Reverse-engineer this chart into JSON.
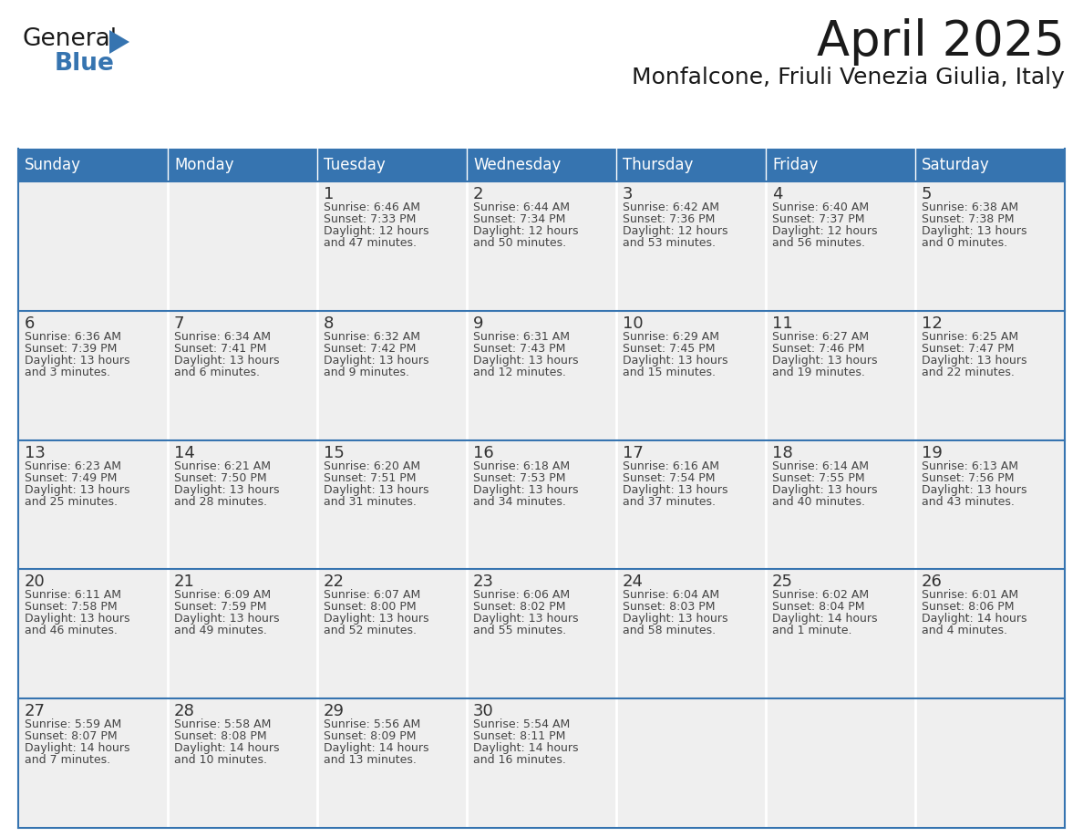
{
  "title": "April 2025",
  "subtitle": "Monfalcone, Friuli Venezia Giulia, Italy",
  "header_bg": "#3674B0",
  "header_text_color": "#FFFFFF",
  "cell_bg": "#EFEFEF",
  "cell_bg_empty": "#EFEFEF",
  "day_number_color": "#333333",
  "cell_text_color": "#444444",
  "border_color": "#3674B0",
  "row_divider_color": "#3674B0",
  "col_divider_color": "#FFFFFF",
  "days_of_week": [
    "Sunday",
    "Monday",
    "Tuesday",
    "Wednesday",
    "Thursday",
    "Friday",
    "Saturday"
  ],
  "weeks": [
    [
      {
        "day": "",
        "info": ""
      },
      {
        "day": "",
        "info": ""
      },
      {
        "day": "1",
        "info": "Sunrise: 6:46 AM\nSunset: 7:33 PM\nDaylight: 12 hours\nand 47 minutes."
      },
      {
        "day": "2",
        "info": "Sunrise: 6:44 AM\nSunset: 7:34 PM\nDaylight: 12 hours\nand 50 minutes."
      },
      {
        "day": "3",
        "info": "Sunrise: 6:42 AM\nSunset: 7:36 PM\nDaylight: 12 hours\nand 53 minutes."
      },
      {
        "day": "4",
        "info": "Sunrise: 6:40 AM\nSunset: 7:37 PM\nDaylight: 12 hours\nand 56 minutes."
      },
      {
        "day": "5",
        "info": "Sunrise: 6:38 AM\nSunset: 7:38 PM\nDaylight: 13 hours\nand 0 minutes."
      }
    ],
    [
      {
        "day": "6",
        "info": "Sunrise: 6:36 AM\nSunset: 7:39 PM\nDaylight: 13 hours\nand 3 minutes."
      },
      {
        "day": "7",
        "info": "Sunrise: 6:34 AM\nSunset: 7:41 PM\nDaylight: 13 hours\nand 6 minutes."
      },
      {
        "day": "8",
        "info": "Sunrise: 6:32 AM\nSunset: 7:42 PM\nDaylight: 13 hours\nand 9 minutes."
      },
      {
        "day": "9",
        "info": "Sunrise: 6:31 AM\nSunset: 7:43 PM\nDaylight: 13 hours\nand 12 minutes."
      },
      {
        "day": "10",
        "info": "Sunrise: 6:29 AM\nSunset: 7:45 PM\nDaylight: 13 hours\nand 15 minutes."
      },
      {
        "day": "11",
        "info": "Sunrise: 6:27 AM\nSunset: 7:46 PM\nDaylight: 13 hours\nand 19 minutes."
      },
      {
        "day": "12",
        "info": "Sunrise: 6:25 AM\nSunset: 7:47 PM\nDaylight: 13 hours\nand 22 minutes."
      }
    ],
    [
      {
        "day": "13",
        "info": "Sunrise: 6:23 AM\nSunset: 7:49 PM\nDaylight: 13 hours\nand 25 minutes."
      },
      {
        "day": "14",
        "info": "Sunrise: 6:21 AM\nSunset: 7:50 PM\nDaylight: 13 hours\nand 28 minutes."
      },
      {
        "day": "15",
        "info": "Sunrise: 6:20 AM\nSunset: 7:51 PM\nDaylight: 13 hours\nand 31 minutes."
      },
      {
        "day": "16",
        "info": "Sunrise: 6:18 AM\nSunset: 7:53 PM\nDaylight: 13 hours\nand 34 minutes."
      },
      {
        "day": "17",
        "info": "Sunrise: 6:16 AM\nSunset: 7:54 PM\nDaylight: 13 hours\nand 37 minutes."
      },
      {
        "day": "18",
        "info": "Sunrise: 6:14 AM\nSunset: 7:55 PM\nDaylight: 13 hours\nand 40 minutes."
      },
      {
        "day": "19",
        "info": "Sunrise: 6:13 AM\nSunset: 7:56 PM\nDaylight: 13 hours\nand 43 minutes."
      }
    ],
    [
      {
        "day": "20",
        "info": "Sunrise: 6:11 AM\nSunset: 7:58 PM\nDaylight: 13 hours\nand 46 minutes."
      },
      {
        "day": "21",
        "info": "Sunrise: 6:09 AM\nSunset: 7:59 PM\nDaylight: 13 hours\nand 49 minutes."
      },
      {
        "day": "22",
        "info": "Sunrise: 6:07 AM\nSunset: 8:00 PM\nDaylight: 13 hours\nand 52 minutes."
      },
      {
        "day": "23",
        "info": "Sunrise: 6:06 AM\nSunset: 8:02 PM\nDaylight: 13 hours\nand 55 minutes."
      },
      {
        "day": "24",
        "info": "Sunrise: 6:04 AM\nSunset: 8:03 PM\nDaylight: 13 hours\nand 58 minutes."
      },
      {
        "day": "25",
        "info": "Sunrise: 6:02 AM\nSunset: 8:04 PM\nDaylight: 14 hours\nand 1 minute."
      },
      {
        "day": "26",
        "info": "Sunrise: 6:01 AM\nSunset: 8:06 PM\nDaylight: 14 hours\nand 4 minutes."
      }
    ],
    [
      {
        "day": "27",
        "info": "Sunrise: 5:59 AM\nSunset: 8:07 PM\nDaylight: 14 hours\nand 7 minutes."
      },
      {
        "day": "28",
        "info": "Sunrise: 5:58 AM\nSunset: 8:08 PM\nDaylight: 14 hours\nand 10 minutes."
      },
      {
        "day": "29",
        "info": "Sunrise: 5:56 AM\nSunset: 8:09 PM\nDaylight: 14 hours\nand 13 minutes."
      },
      {
        "day": "30",
        "info": "Sunrise: 5:54 AM\nSunset: 8:11 PM\nDaylight: 14 hours\nand 16 minutes."
      },
      {
        "day": "",
        "info": ""
      },
      {
        "day": "",
        "info": ""
      },
      {
        "day": "",
        "info": ""
      }
    ]
  ],
  "logo_general_color": "#1a1a1a",
  "logo_blue_color": "#3674B0",
  "logo_triangle_color": "#3674B0",
  "title_fontsize": 38,
  "subtitle_fontsize": 18,
  "dow_fontsize": 12,
  "day_num_fontsize": 13,
  "info_fontsize": 9
}
